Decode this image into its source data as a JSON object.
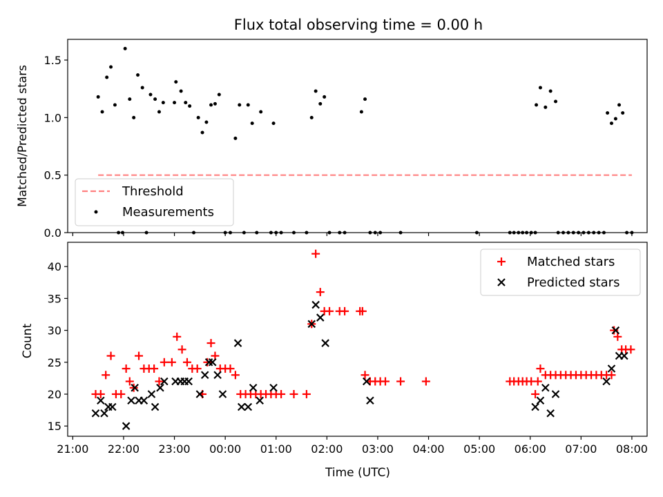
{
  "chart_data": [
    {
      "type": "scatter",
      "title": "Flux total observing time = 0.00 h",
      "xlabel": "",
      "ylabel": "Matched/Predicted stars",
      "ylim": [
        0,
        1.68
      ],
      "xlim": [
        -0.1,
        11.3
      ],
      "x_unit": "hours after 21:00 UTC",
      "yticks": [
        "0.0",
        "0.5",
        "1.0",
        "1.5"
      ],
      "legend_position": "lower-left",
      "threshold": {
        "name": "Threshold",
        "y": 0.5,
        "x_range": [
          0.5,
          11.0
        ],
        "color": "#ff7f7f",
        "style": "dashed"
      },
      "series": [
        {
          "name": "Measurements",
          "color": "#000000",
          "marker": "point",
          "points": [
            [
              0.5,
              1.18
            ],
            [
              0.58,
              1.05
            ],
            [
              0.67,
              1.35
            ],
            [
              0.75,
              1.44
            ],
            [
              0.83,
              1.11
            ],
            [
              0.9,
              0.0
            ],
            [
              0.98,
              0.0
            ],
            [
              1.03,
              1.6
            ],
            [
              1.12,
              1.16
            ],
            [
              1.2,
              1.0
            ],
            [
              1.28,
              1.37
            ],
            [
              1.37,
              1.26
            ],
            [
              1.45,
              0.0
            ],
            [
              1.53,
              1.2
            ],
            [
              1.62,
              1.16
            ],
            [
              1.7,
              1.05
            ],
            [
              1.78,
              1.13
            ],
            [
              2.0,
              1.13
            ],
            [
              2.03,
              1.31
            ],
            [
              2.13,
              1.23
            ],
            [
              2.22,
              1.13
            ],
            [
              2.3,
              1.1
            ],
            [
              2.38,
              0.0
            ],
            [
              2.47,
              1.0
            ],
            [
              2.55,
              0.87
            ],
            [
              2.63,
              0.96
            ],
            [
              2.72,
              1.11
            ],
            [
              2.8,
              1.12
            ],
            [
              2.88,
              1.2
            ],
            [
              3.0,
              0.0
            ],
            [
              3.1,
              0.0
            ],
            [
              3.2,
              0.82
            ],
            [
              3.28,
              1.11
            ],
            [
              3.37,
              0.0
            ],
            [
              3.45,
              1.11
            ],
            [
              3.53,
              0.95
            ],
            [
              3.62,
              0.0
            ],
            [
              3.7,
              1.05
            ],
            [
              3.9,
              0.0
            ],
            [
              3.95,
              0.95
            ],
            [
              4.0,
              0.0
            ],
            [
              4.1,
              0.0
            ],
            [
              4.35,
              0.0
            ],
            [
              4.6,
              0.0
            ],
            [
              4.7,
              1.0
            ],
            [
              4.78,
              1.23
            ],
            [
              4.87,
              1.12
            ],
            [
              4.95,
              1.18
            ],
            [
              5.05,
              0.0
            ],
            [
              5.25,
              0.0
            ],
            [
              5.35,
              0.0
            ],
            [
              5.68,
              1.05
            ],
            [
              5.75,
              1.16
            ],
            [
              5.85,
              0.0
            ],
            [
              5.95,
              0.0
            ],
            [
              6.05,
              0.0
            ],
            [
              6.45,
              0.0
            ],
            [
              7.95,
              0.0
            ],
            [
              8.6,
              0.0
            ],
            [
              8.68,
              0.0
            ],
            [
              8.77,
              0.0
            ],
            [
              8.85,
              0.0
            ],
            [
              8.93,
              0.0
            ],
            [
              9.02,
              0.0
            ],
            [
              9.1,
              0.0
            ],
            [
              9.12,
              1.11
            ],
            [
              9.2,
              1.26
            ],
            [
              9.3,
              1.09
            ],
            [
              9.4,
              1.23
            ],
            [
              9.5,
              1.14
            ],
            [
              9.55,
              0.0
            ],
            [
              9.65,
              0.0
            ],
            [
              9.75,
              0.0
            ],
            [
              9.85,
              0.0
            ],
            [
              9.95,
              0.0
            ],
            [
              10.05,
              0.0
            ],
            [
              10.15,
              0.0
            ],
            [
              10.25,
              0.0
            ],
            [
              10.35,
              0.0
            ],
            [
              10.45,
              0.0
            ],
            [
              10.52,
              1.04
            ],
            [
              10.6,
              0.95
            ],
            [
              10.68,
              0.99
            ],
            [
              10.75,
              1.11
            ],
            [
              10.82,
              1.04
            ],
            [
              10.9,
              0.0
            ],
            [
              11.0,
              0.0
            ]
          ]
        }
      ]
    },
    {
      "type": "scatter",
      "title": "",
      "xlabel": "Time (UTC)",
      "ylabel": "Count",
      "ylim": [
        13.4,
        43.8
      ],
      "xlim": [
        -0.1,
        11.3
      ],
      "x_unit": "hours after 21:00 UTC",
      "xticks": [
        "21:00",
        "22:00",
        "23:00",
        "00:00",
        "01:00",
        "02:00",
        "03:00",
        "04:00",
        "05:00",
        "06:00",
        "07:00",
        "08:00"
      ],
      "yticks": [
        "15",
        "20",
        "25",
        "30",
        "35",
        "40"
      ],
      "legend_position": "top-right",
      "series": [
        {
          "name": "Matched stars",
          "color": "#ff0000",
          "marker": "plus",
          "points": [
            [
              0.45,
              20
            ],
            [
              0.55,
              20
            ],
            [
              0.65,
              23
            ],
            [
              0.75,
              26
            ],
            [
              0.85,
              20
            ],
            [
              0.95,
              20
            ],
            [
              1.05,
              24
            ],
            [
              1.12,
              22
            ],
            [
              1.2,
              21
            ],
            [
              1.3,
              26
            ],
            [
              1.4,
              24
            ],
            [
              1.5,
              24
            ],
            [
              1.6,
              24
            ],
            [
              1.7,
              22
            ],
            [
              1.8,
              25
            ],
            [
              1.95,
              25
            ],
            [
              2.05,
              29
            ],
            [
              2.15,
              27
            ],
            [
              2.25,
              25
            ],
            [
              2.35,
              24
            ],
            [
              2.45,
              24
            ],
            [
              2.55,
              20
            ],
            [
              2.65,
              25
            ],
            [
              2.72,
              28
            ],
            [
              2.8,
              26
            ],
            [
              2.9,
              24
            ],
            [
              3.0,
              24
            ],
            [
              3.1,
              24
            ],
            [
              3.2,
              23
            ],
            [
              3.3,
              20
            ],
            [
              3.4,
              20
            ],
            [
              3.5,
              20
            ],
            [
              3.6,
              20
            ],
            [
              3.7,
              20
            ],
            [
              3.8,
              20
            ],
            [
              3.9,
              20
            ],
            [
              4.0,
              20
            ],
            [
              4.1,
              20
            ],
            [
              4.35,
              20
            ],
            [
              4.6,
              20
            ],
            [
              4.7,
              31
            ],
            [
              4.78,
              42
            ],
            [
              4.87,
              36
            ],
            [
              4.95,
              33
            ],
            [
              5.05,
              33
            ],
            [
              5.25,
              33
            ],
            [
              5.35,
              33
            ],
            [
              5.65,
              33
            ],
            [
              5.7,
              33
            ],
            [
              5.75,
              23
            ],
            [
              5.85,
              22
            ],
            [
              5.95,
              22
            ],
            [
              6.05,
              22
            ],
            [
              6.15,
              22
            ],
            [
              6.45,
              22
            ],
            [
              6.95,
              22
            ],
            [
              8.6,
              22
            ],
            [
              8.68,
              22
            ],
            [
              8.77,
              22
            ],
            [
              8.85,
              22
            ],
            [
              8.93,
              22
            ],
            [
              9.02,
              22
            ],
            [
              9.1,
              20
            ],
            [
              9.15,
              22
            ],
            [
              9.2,
              24
            ],
            [
              9.3,
              23
            ],
            [
              9.4,
              23
            ],
            [
              9.5,
              23
            ],
            [
              9.6,
              23
            ],
            [
              9.7,
              23
            ],
            [
              9.8,
              23
            ],
            [
              9.9,
              23
            ],
            [
              10.0,
              23
            ],
            [
              10.1,
              23
            ],
            [
              10.2,
              23
            ],
            [
              10.3,
              23
            ],
            [
              10.4,
              23
            ],
            [
              10.5,
              23
            ],
            [
              10.6,
              23
            ],
            [
              10.65,
              30
            ],
            [
              10.72,
              29
            ],
            [
              10.8,
              27
            ],
            [
              10.88,
              27
            ],
            [
              10.98,
              27
            ]
          ]
        },
        {
          "name": "Predicted stars",
          "color": "#000000",
          "marker": "x",
          "points": [
            [
              0.45,
              17
            ],
            [
              0.55,
              19
            ],
            [
              0.62,
              17
            ],
            [
              0.7,
              18
            ],
            [
              0.78,
              18
            ],
            [
              1.05,
              15
            ],
            [
              1.15,
              19
            ],
            [
              1.22,
              21
            ],
            [
              1.3,
              19
            ],
            [
              1.4,
              19
            ],
            [
              1.55,
              20
            ],
            [
              1.62,
              18
            ],
            [
              1.72,
              21
            ],
            [
              1.8,
              22
            ],
            [
              2.02,
              22
            ],
            [
              2.12,
              22
            ],
            [
              2.2,
              22
            ],
            [
              2.28,
              22
            ],
            [
              2.5,
              20
            ],
            [
              2.6,
              23
            ],
            [
              2.68,
              25
            ],
            [
              2.75,
              25
            ],
            [
              2.85,
              23
            ],
            [
              2.95,
              20
            ],
            [
              3.25,
              28
            ],
            [
              3.32,
              18
            ],
            [
              3.45,
              18
            ],
            [
              3.55,
              21
            ],
            [
              3.68,
              19
            ],
            [
              3.95,
              21
            ],
            [
              4.7,
              31
            ],
            [
              4.78,
              34
            ],
            [
              4.87,
              32
            ],
            [
              4.97,
              28
            ],
            [
              5.78,
              22
            ],
            [
              5.85,
              19
            ],
            [
              9.1,
              18
            ],
            [
              9.2,
              19
            ],
            [
              9.3,
              21
            ],
            [
              9.4,
              17
            ],
            [
              9.5,
              20
            ],
            [
              10.5,
              22
            ],
            [
              10.6,
              24
            ],
            [
              10.68,
              30
            ],
            [
              10.75,
              26
            ],
            [
              10.85,
              26
            ]
          ]
        }
      ]
    }
  ]
}
